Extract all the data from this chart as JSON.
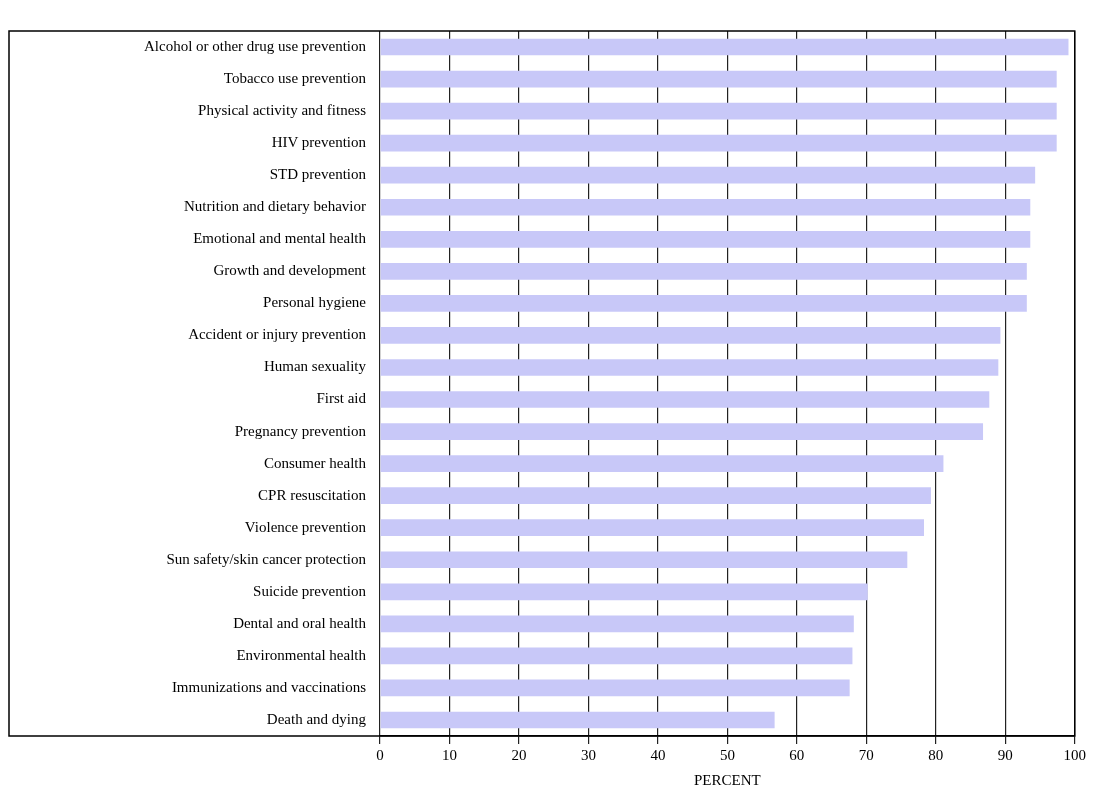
{
  "chart_data": {
    "type": "bar",
    "orientation": "horizontal",
    "xlabel": "PERCENT",
    "categories": [
      "Alcohol or other drug use prevention",
      "Tobacco use prevention",
      "Physical activity and fitness",
      "HIV prevention",
      "STD prevention",
      "Nutrition and dietary behavior",
      "Emotional and mental health",
      "Growth and development",
      "Personal hygiene",
      "Accident or injury prevention",
      "Human sexuality",
      "First aid",
      "Pregnancy prevention",
      "Consumer health",
      "CPR resuscitation",
      "Violence prevention",
      "Sun safety/skin cancer protection",
      "Suicide prevention",
      "Dental and oral health",
      "Environmental health",
      "Immunizations and vaccinations",
      "Death and dying"
    ],
    "values": [
      99.1,
      97.4,
      97.4,
      97.4,
      94.3,
      93.6,
      93.6,
      93.1,
      93.1,
      89.3,
      89.0,
      87.7,
      86.8,
      81.1,
      79.3,
      78.3,
      75.9,
      70.2,
      68.2,
      68.0,
      67.6,
      56.8
    ],
    "color": "#c8c8f8",
    "xlim": [
      0,
      100
    ],
    "xticks": [
      0,
      10,
      20,
      30,
      40,
      50,
      60,
      70,
      80,
      90,
      100
    ],
    "grid": "x"
  }
}
